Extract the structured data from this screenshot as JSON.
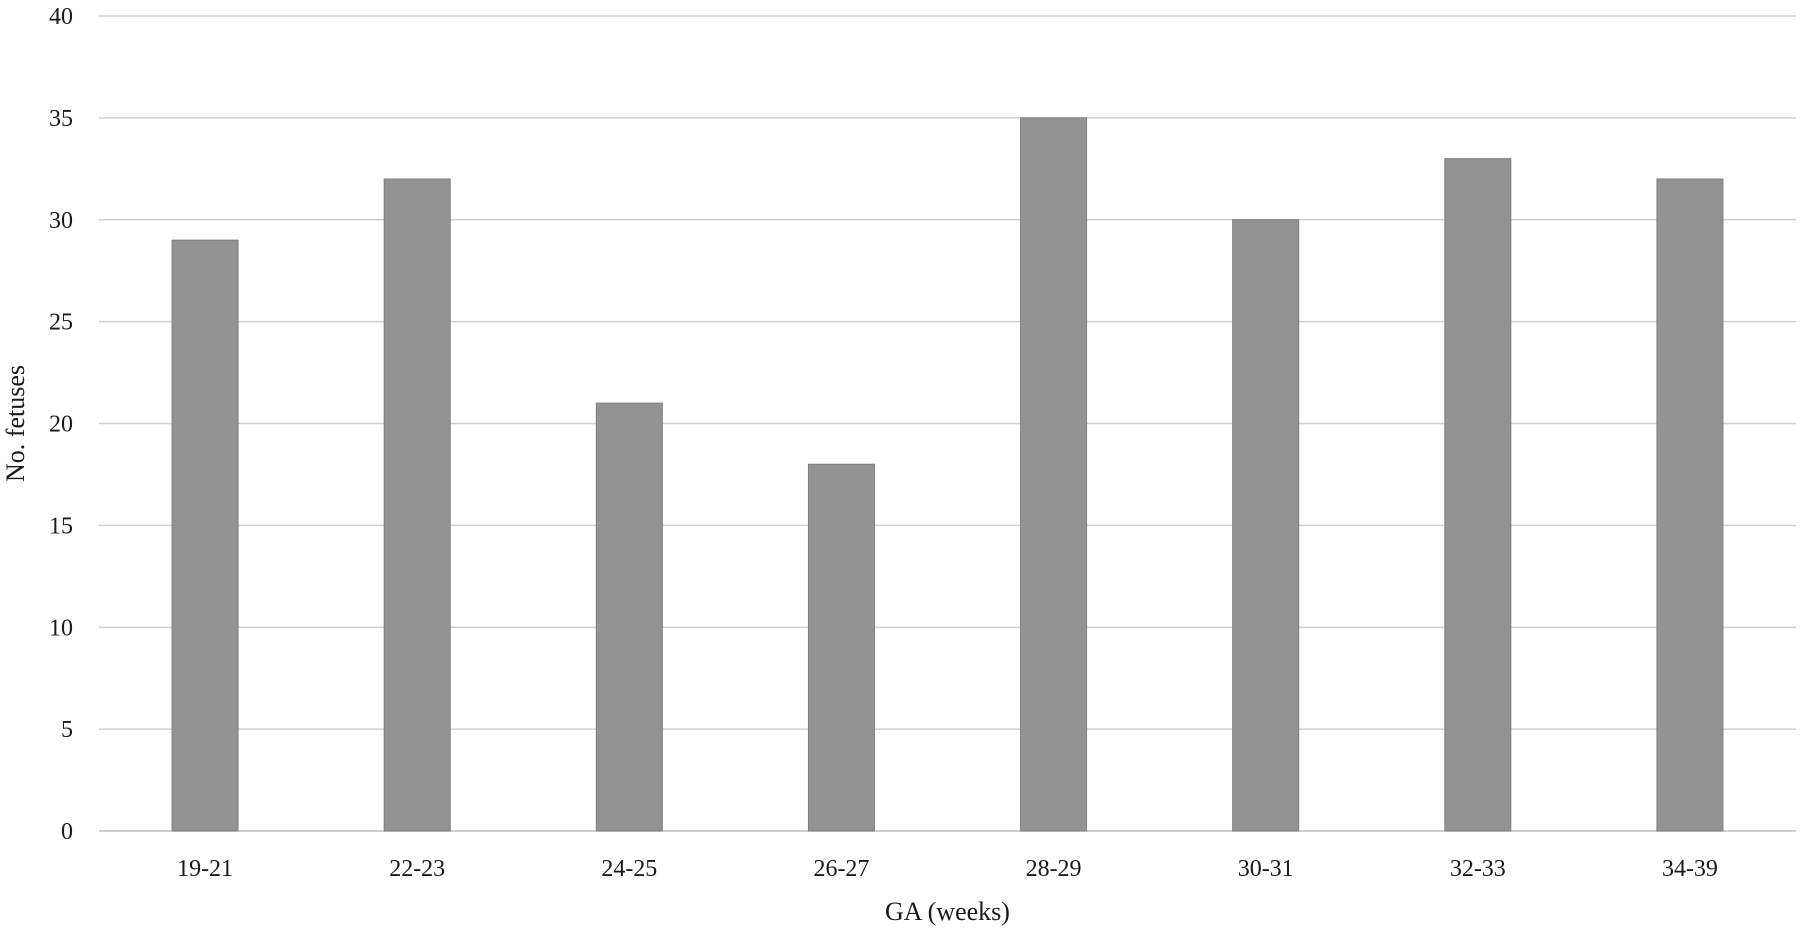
{
  "chart_data": {
    "type": "bar",
    "categories": [
      "19-21",
      "22-23",
      "24-25",
      "26-27",
      "28-29",
      "30-31",
      "32-33",
      "34-39"
    ],
    "values": [
      29,
      32,
      21,
      18,
      35,
      30,
      33,
      32
    ],
    "xlabel": "GA (weeks)",
    "ylabel": "No. fetuses",
    "ylim": [
      0,
      40
    ],
    "yticks": [
      0,
      5,
      10,
      15,
      20,
      25,
      30,
      35,
      40
    ],
    "grid": true,
    "legend": "none",
    "bar_color": "#939393",
    "bar_border_color": "#7f7f7f",
    "grid_color": "#d0d0d0"
  }
}
